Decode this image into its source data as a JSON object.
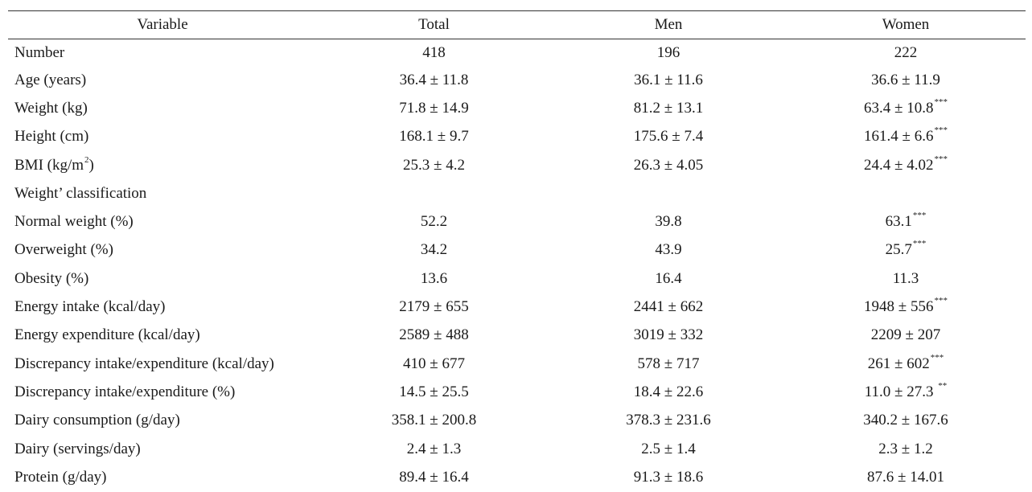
{
  "headers": [
    "Variable",
    "Total",
    "Men",
    "Women"
  ],
  "rows": [
    {
      "label": "Number",
      "label_sup": "",
      "label_after": "",
      "total": "418",
      "men": "196",
      "women": "222",
      "women_sup": ""
    },
    {
      "label": "Age (years)",
      "label_sup": "",
      "label_after": "",
      "total": "36.4 ± 11.8",
      "men": "36.1 ± 11.6",
      "women": "36.6 ± 11.9",
      "women_sup": ""
    },
    {
      "label": "Weight (kg)",
      "label_sup": "",
      "label_after": "",
      "total": "71.8 ± 14.9",
      "men": "81.2 ± 13.1",
      "women": "63.4 ± 10.8",
      "women_sup": "***"
    },
    {
      "label": "Height (cm)",
      "label_sup": "",
      "label_after": "",
      "total": "168.1 ± 9.7",
      "men": "175.6 ± 7.4",
      "women": "161.4 ± 6.6",
      "women_sup": "***"
    },
    {
      "label": "BMI (kg/m",
      "label_sup": "2",
      "label_after": ")",
      "total": "25.3 ± 4.2",
      "men": "26.3 ± 4.05",
      "women": "24.4 ± 4.02",
      "women_sup": "***"
    },
    {
      "label": "Weight’ classification",
      "label_sup": "",
      "label_after": "",
      "total": "",
      "men": "",
      "women": "",
      "women_sup": ""
    },
    {
      "label": "Normal weight (%)",
      "label_sup": "",
      "label_after": "",
      "total": "52.2",
      "men": "39.8",
      "women": "63.1",
      "women_sup": "***"
    },
    {
      "label": "Overweight (%)",
      "label_sup": "",
      "label_after": "",
      "total": "34.2",
      "men": "43.9",
      "women": "25.7",
      "women_sup": "***"
    },
    {
      "label": "Obesity (%)",
      "label_sup": "",
      "label_after": "",
      "total": "13.6",
      "men": "16.4",
      "women": "11.3",
      "women_sup": ""
    },
    {
      "label": "Energy intake (kcal/day)",
      "label_sup": "",
      "label_after": "",
      "total": "2179 ± 655",
      "men": "2441 ± 662",
      "women": "1948 ± 556",
      "women_sup": "***"
    },
    {
      "label": "Energy expenditure (kcal/day)",
      "label_sup": "",
      "label_after": "",
      "total": "2589 ± 488",
      "men": "3019 ± 332",
      "women": "2209 ± 207",
      "women_sup": ""
    },
    {
      "label": "Discrepancy intake/expenditure (kcal/day)",
      "label_sup": "",
      "label_after": "",
      "total": "410 ± 677",
      "men": "578 ± 717",
      "women": "261 ± 602",
      "women_sup": "***"
    },
    {
      "label": "Discrepancy intake/expenditure (%)",
      "label_sup": "",
      "label_after": "",
      "total": "14.5 ± 25.5",
      "men": "18.4 ± 22.6",
      "women": "11.0 ± 27.3 ",
      "women_sup": "**"
    },
    {
      "label": "Dairy consumption (g/day)",
      "label_sup": "",
      "label_after": "",
      "total": "358.1 ± 200.8",
      "men": "378.3 ± 231.6",
      "women": "340.2 ± 167.6",
      "women_sup": ""
    },
    {
      "label": "Dairy (servings/day)",
      "label_sup": "",
      "label_after": "",
      "total": "2.4 ± 1.3",
      "men": "2.5 ± 1.4",
      "women": "2.3 ± 1.2",
      "women_sup": ""
    },
    {
      "label": "Protein (g/day)",
      "label_sup": "",
      "label_after": "",
      "total": "89.4 ± 16.4",
      "men": "91.3 ± 18.6",
      "women": "87.6 ± 14.01",
      "women_sup": ""
    }
  ]
}
